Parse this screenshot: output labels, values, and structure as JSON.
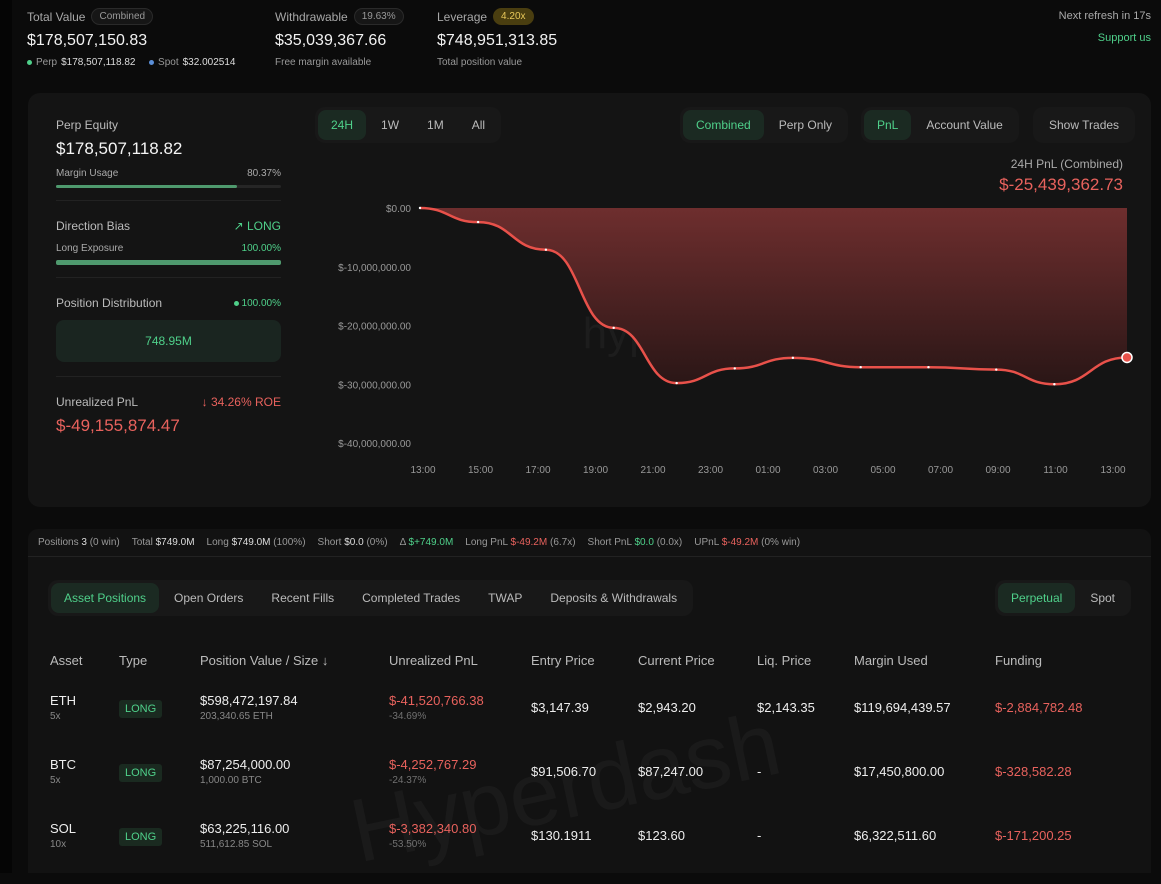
{
  "header": {
    "total_value": {
      "label": "Total Value",
      "badge": "Combined",
      "value": "$178,507,150.83",
      "perp_label": "Perp",
      "perp_value": "$178,507,118.82",
      "spot_label": "Spot",
      "spot_value": "$32.002514"
    },
    "withdrawable": {
      "label": "Withdrawable",
      "badge": "19.63%",
      "value": "$35,039,367.66",
      "sub": "Free margin available"
    },
    "leverage": {
      "label": "Leverage",
      "badge": "4.20x",
      "value": "$748,951,313.85",
      "sub": "Total position value"
    },
    "refresh": "Next refresh in 17s",
    "support": "Support us"
  },
  "side": {
    "perp_equity_label": "Perp Equity",
    "perp_equity": "$178,507,118.82",
    "margin_label": "Margin Usage",
    "margin_pct": "80.37%",
    "margin_fraction": 0.8037,
    "bias_label": "Direction Bias",
    "bias": "LONG",
    "long_exp_label": "Long Exposure",
    "long_exp": "100.00%",
    "long_fraction": 1.0,
    "dist_label": "Position Distribution",
    "dist_pct": "100.00%",
    "dist_value": "748.95M",
    "upnl_label": "Unrealized PnL",
    "roe": "34.26% ROE",
    "upnl": "$-49,155,874.47"
  },
  "chart_controls": {
    "ranges": [
      "24H",
      "1W",
      "1M",
      "All"
    ],
    "modes": [
      "Combined",
      "Perp Only"
    ],
    "metrics": [
      "PnL",
      "Account Value"
    ],
    "show_trades": "Show Trades"
  },
  "chart_data": {
    "type": "area",
    "title": "24H PnL (Combined)",
    "headline": "$-25,439,362.73",
    "x": [
      "13:00",
      "15:00",
      "17:20",
      "19:40",
      "21:50",
      "23:50",
      "01:50",
      "04:10",
      "06:30",
      "08:50",
      "10:50",
      "13:20"
    ],
    "values": [
      0,
      -2400000,
      -7100000,
      -20400000,
      -29800000,
      -27300000,
      -25500000,
      -27100000,
      -27100000,
      -27500000,
      -30000000,
      -25439362.73
    ],
    "ylim": [
      -40000000,
      0
    ],
    "y_ticks": [
      "$0.00",
      "$-10,000,000.00",
      "$-20,000,000.00",
      "$-30,000,000.00",
      "$-40,000,000.00"
    ],
    "x_ticks": [
      "13:00",
      "15:00",
      "17:00",
      "19:00",
      "21:00",
      "23:00",
      "01:00",
      "03:00",
      "05:00",
      "07:00",
      "09:00",
      "11:00",
      "13:00"
    ],
    "color": "#e8514a",
    "watermark": "hyperdash.info"
  },
  "stats": {
    "positions_label": "Positions",
    "positions": "3",
    "positions_note": "(0 win)",
    "total_label": "Total",
    "total": "$749.0M",
    "long_label": "Long",
    "long": "$749.0M",
    "long_note": "(100%)",
    "short_label": "Short",
    "short": "$0.0",
    "short_note": "(0%)",
    "delta_label": "Δ",
    "delta": "$+749.0M",
    "longpnl_label": "Long PnL",
    "longpnl": "$-49.2M",
    "longpnl_note": "(6.7x)",
    "shortpnl_label": "Short PnL",
    "shortpnl": "$0.0",
    "shortpnl_note": "(0.0x)",
    "upnl_label": "UPnL",
    "upnl": "$-49.2M",
    "upnl_note": "(0% win)"
  },
  "tabs": [
    "Asset Positions",
    "Open Orders",
    "Recent Fills",
    "Completed Trades",
    "TWAP",
    "Deposits & Withdrawals"
  ],
  "market_tabs": [
    "Perpetual",
    "Spot"
  ],
  "table": {
    "headers": [
      "Asset",
      "Type",
      "Position Value / Size ↓",
      "Unrealized PnL",
      "Entry Price",
      "Current Price",
      "Liq. Price",
      "Margin Used",
      "Funding"
    ],
    "rows": [
      {
        "asset": "ETH",
        "lev": "5x",
        "type": "LONG",
        "value": "$598,472,197.84",
        "size": "203,340.65 ETH",
        "pnl": "$-41,520,766.38",
        "pnl_pct": "-34.69%",
        "entry": "$3,147.39",
        "current": "$2,943.20",
        "liq": "$2,143.35",
        "margin": "$119,694,439.57",
        "funding": "$-2,884,782.48"
      },
      {
        "asset": "BTC",
        "lev": "5x",
        "type": "LONG",
        "value": "$87,254,000.00",
        "size": "1,000.00 BTC",
        "pnl": "$-4,252,767.29",
        "pnl_pct": "-24.37%",
        "entry": "$91,506.70",
        "current": "$87,247.00",
        "liq": "-",
        "margin": "$17,450,800.00",
        "funding": "$-328,582.28"
      },
      {
        "asset": "SOL",
        "lev": "10x",
        "type": "LONG",
        "value": "$63,225,116.00",
        "size": "511,612.85 SOL",
        "pnl": "$-3,382,340.80",
        "pnl_pct": "-53.50%",
        "entry": "$130.1911",
        "current": "$123.60",
        "liq": "-",
        "margin": "$6,322,511.60",
        "funding": "$-171,200.25"
      }
    ]
  }
}
